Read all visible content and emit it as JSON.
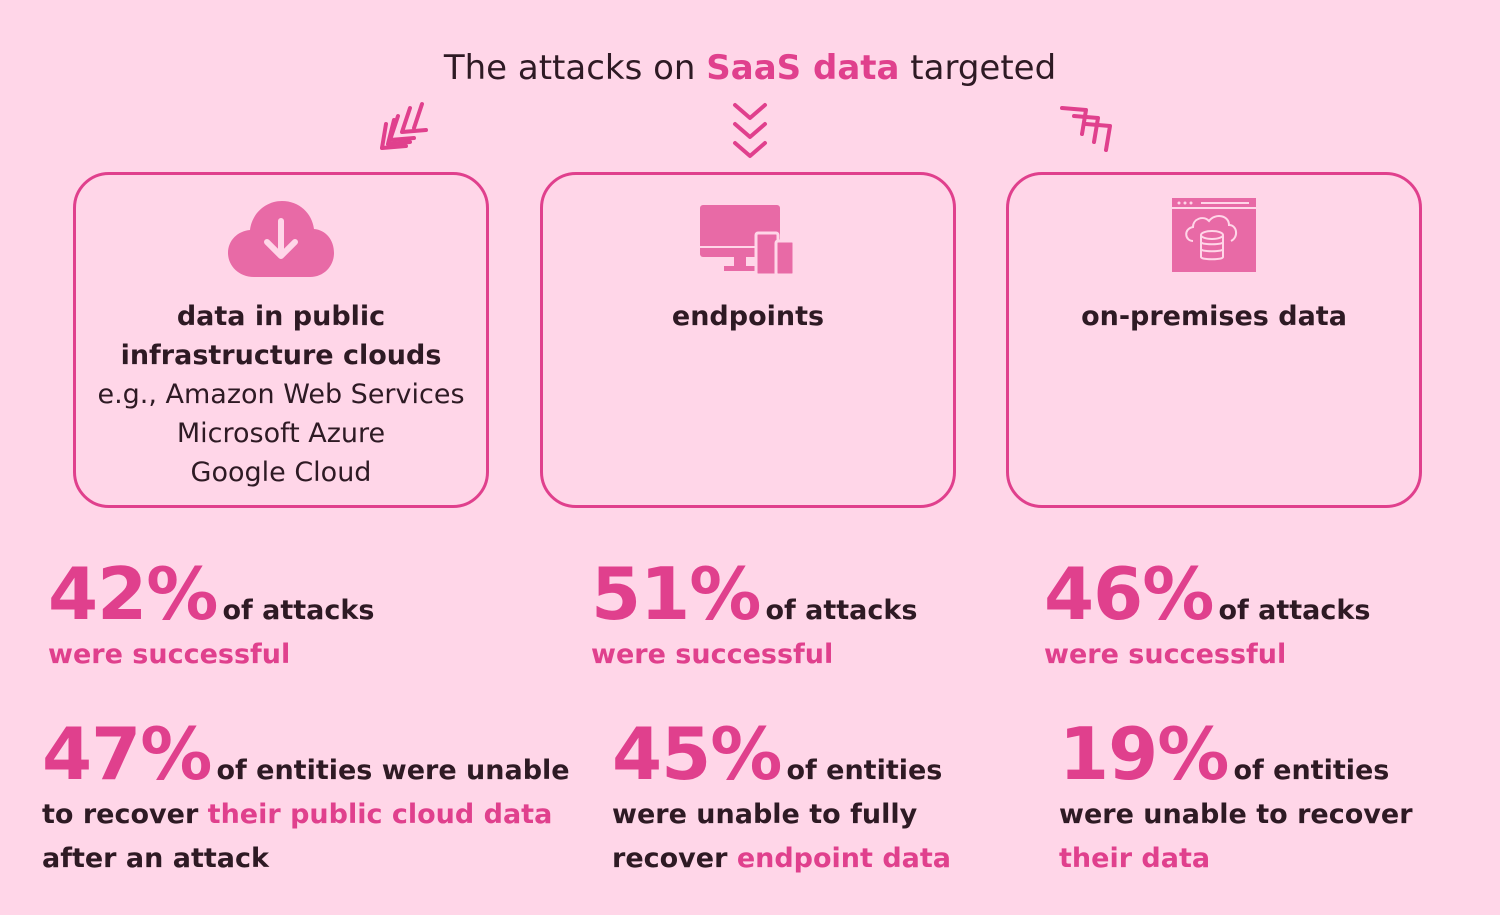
{
  "title": {
    "prefix": "The attacks on ",
    "highlight": "SaaS data",
    "suffix": " targeted"
  },
  "colors": {
    "background": "#ffd6e8",
    "accent": "#e0408d",
    "text": "#2e1a24"
  },
  "cards": [
    {
      "icon": "cloud-download-icon",
      "label_line1": "data in public",
      "label_line2": "infrastructure clouds",
      "details": [
        "e.g., Amazon Web Services",
        "Microsoft Azure",
        "Google Cloud"
      ]
    },
    {
      "icon": "devices-icon",
      "label": "endpoints"
    },
    {
      "icon": "cloud-database-browser-icon",
      "label": "on-premises data"
    }
  ],
  "success": [
    {
      "pct": "42%",
      "text1": "of attacks",
      "text2": "were successful"
    },
    {
      "pct": "51%",
      "text1": "of attacks",
      "text2": "were successful"
    },
    {
      "pct": "46%",
      "text1": "of attacks",
      "text2": "were successful"
    }
  ],
  "recovery": [
    {
      "pct": "47%",
      "l1": "of entities were unable",
      "l2a": "to recover ",
      "l2b": "their public cloud data",
      "l3": "after an attack"
    },
    {
      "pct": "45%",
      "l1": "of entities",
      "l2": "were unable to fully",
      "l3a": "recover ",
      "l3b": "endpoint data"
    },
    {
      "pct": "19%",
      "l1": "of entities",
      "l2": "were unable to recover",
      "l3": "their data"
    }
  ]
}
